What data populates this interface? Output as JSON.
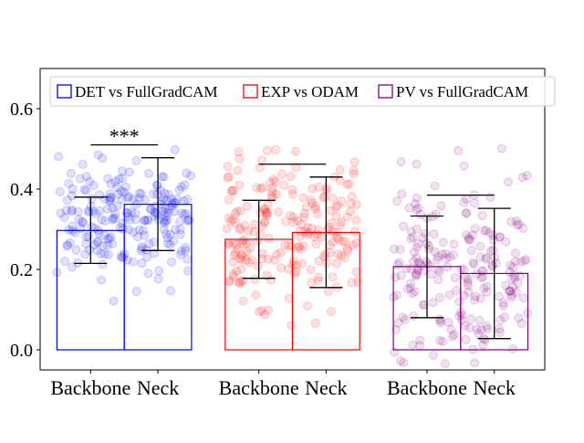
{
  "chart_data": {
    "type": "bar",
    "title": "",
    "xlabel": "",
    "ylabel": "",
    "ylim": [
      -0.05,
      0.7
    ],
    "yticks": [
      0.0,
      0.2,
      0.4,
      0.6
    ],
    "ytick_labels": [
      "0.0",
      "0.2",
      "0.4",
      "0.6"
    ],
    "grid": false,
    "legend_position": "top",
    "groups": [
      {
        "name": "DET vs FullGradCAM",
        "color": "#0000ff",
        "bars": [
          {
            "label": "Backbone",
            "value": 0.297,
            "err_low": 0.215,
            "err_high": 0.38
          },
          {
            "label": "Neck",
            "value": 0.362,
            "err_low": 0.247,
            "err_high": 0.478
          }
        ],
        "significance": {
          "text": "***",
          "y": 0.51
        },
        "scatter": {
          "min": 0.09,
          "max": 0.68,
          "center": 0.33,
          "spread": 0.08
        }
      },
      {
        "name": "EXP vs ODAM",
        "color": "#ff0000",
        "bars": [
          {
            "label": "Backbone",
            "value": 0.275,
            "err_low": 0.178,
            "err_high": 0.372
          },
          {
            "label": "Neck",
            "value": 0.292,
            "err_low": 0.155,
            "err_high": 0.43
          }
        ],
        "significance": {
          "text": "",
          "y": 0.462
        },
        "scatter": {
          "min": 0.05,
          "max": 0.66,
          "center": 0.28,
          "spread": 0.11
        }
      },
      {
        "name": "PV vs FullGradCAM",
        "color": "#800080",
        "bars": [
          {
            "label": "Backbone",
            "value": 0.207,
            "err_low": 0.08,
            "err_high": 0.333
          },
          {
            "label": "Neck",
            "value": 0.19,
            "err_low": 0.028,
            "err_high": 0.352
          }
        ],
        "significance": {
          "text": "",
          "y": 0.385
        },
        "scatter": {
          "min": -0.04,
          "max": 0.57,
          "center": 0.2,
          "spread": 0.12
        }
      }
    ]
  }
}
